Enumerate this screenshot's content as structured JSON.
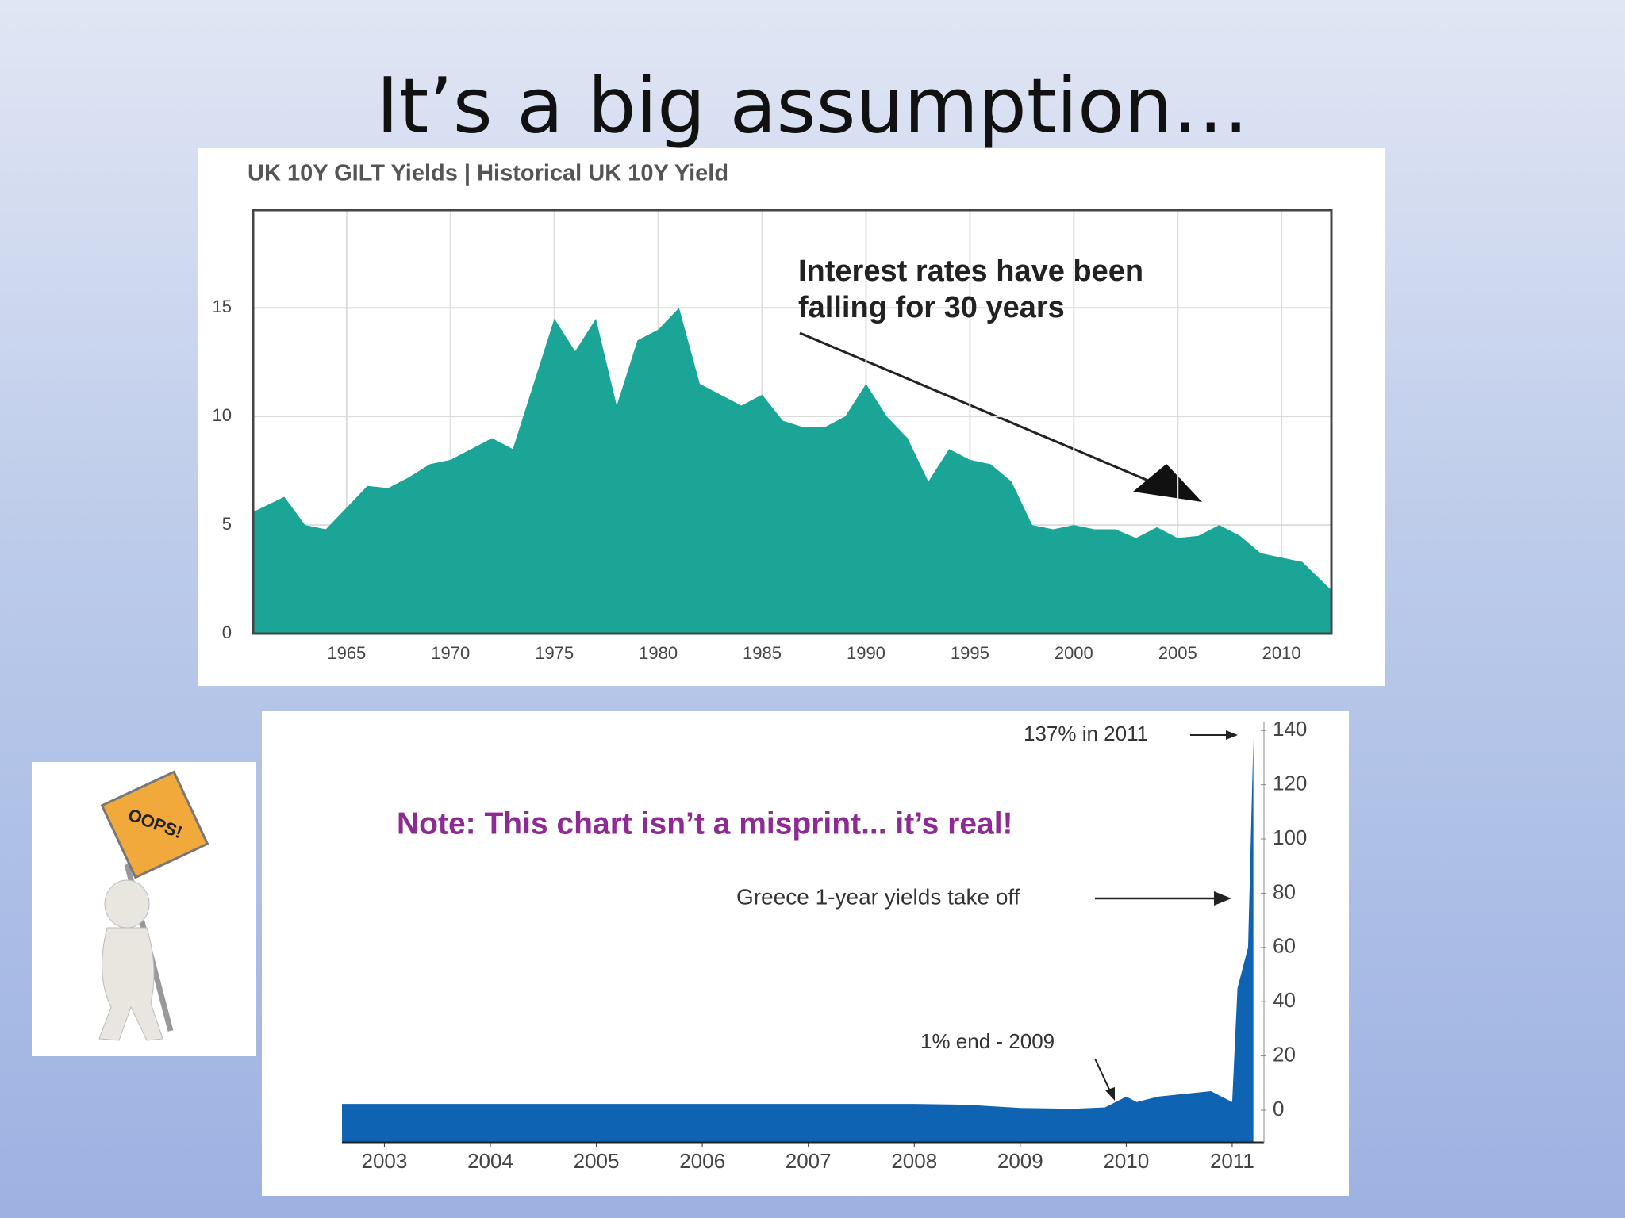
{
  "title": "It’s a big assumption…",
  "image_sign": "OOPS!",
  "chart_data": [
    {
      "type": "area",
      "title": "UK 10Y GILT Yields | Historical UK 10Y Yield",
      "annotation": [
        "Interest rates have been",
        "falling for 30 years"
      ],
      "x": [
        1960.5,
        1962,
        1963,
        1964,
        1965,
        1966,
        1967,
        1968,
        1969,
        1970,
        1971,
        1972,
        1973,
        1974,
        1975,
        1976,
        1977,
        1978,
        1979,
        1980,
        1981,
        1982,
        1983,
        1984,
        1985,
        1986,
        1987,
        1988,
        1989,
        1990,
        1991,
        1992,
        1993,
        1994,
        1995,
        1996,
        1997,
        1998,
        1999,
        2000,
        2001,
        2002,
        2003,
        2004,
        2005,
        2006,
        2007,
        2008,
        2009,
        2010,
        2011,
        2012.4
      ],
      "values": [
        5.6,
        6.3,
        5.0,
        4.8,
        5.8,
        6.8,
        6.7,
        7.2,
        7.8,
        8.0,
        8.5,
        9.0,
        8.5,
        11.5,
        14.5,
        13.0,
        14.5,
        10.5,
        13.5,
        14.0,
        15.0,
        11.5,
        11.0,
        10.5,
        11.0,
        9.8,
        9.5,
        9.5,
        10.0,
        11.5,
        10.0,
        9.0,
        7.0,
        8.5,
        8.0,
        7.8,
        7.0,
        5.0,
        4.8,
        5.0,
        4.8,
        4.8,
        4.4,
        4.9,
        4.4,
        4.5,
        5.0,
        4.5,
        3.7,
        3.5,
        3.3,
        2.0
      ],
      "color": "#1aa596",
      "xlim": [
        1960.5,
        2012.4
      ],
      "ylim": [
        0,
        19.5
      ],
      "xticks": [
        1965,
        1970,
        1975,
        1980,
        1985,
        1990,
        1995,
        2000,
        2005,
        2010
      ],
      "yticks": [
        0,
        5,
        10,
        15
      ],
      "y_axis_side": "left",
      "grid": true
    },
    {
      "type": "area",
      "annotation": [
        "137% in 2011",
        "Note: This chart isn’t a misprint... it’s real!",
        "Greece 1-year yields take off",
        "1% end - 2009"
      ],
      "x": [
        2002.6,
        2004,
        2005,
        2006,
        2007,
        2008,
        2008.5,
        2009,
        2009.5,
        2009.8,
        2010,
        2010.1,
        2010.3,
        2010.8,
        2011.0,
        2011.05,
        2011.15,
        2011.2
      ],
      "values": [
        2.3,
        2.3,
        2.3,
        2.3,
        2.3,
        2.3,
        2,
        0.8,
        0.5,
        1,
        5,
        3,
        5,
        7,
        3,
        45,
        60,
        137
      ],
      "color": "#0e63b3",
      "xlim": [
        2002.6,
        2011.3
      ],
      "ylim": [
        -12,
        143
      ],
      "xticks": [
        2003,
        2004,
        2005,
        2006,
        2007,
        2008,
        2009,
        2010,
        2011
      ],
      "yticks": [
        0,
        20,
        40,
        60,
        80,
        100,
        120,
        140
      ],
      "y_axis_side": "right",
      "grid": false
    }
  ]
}
